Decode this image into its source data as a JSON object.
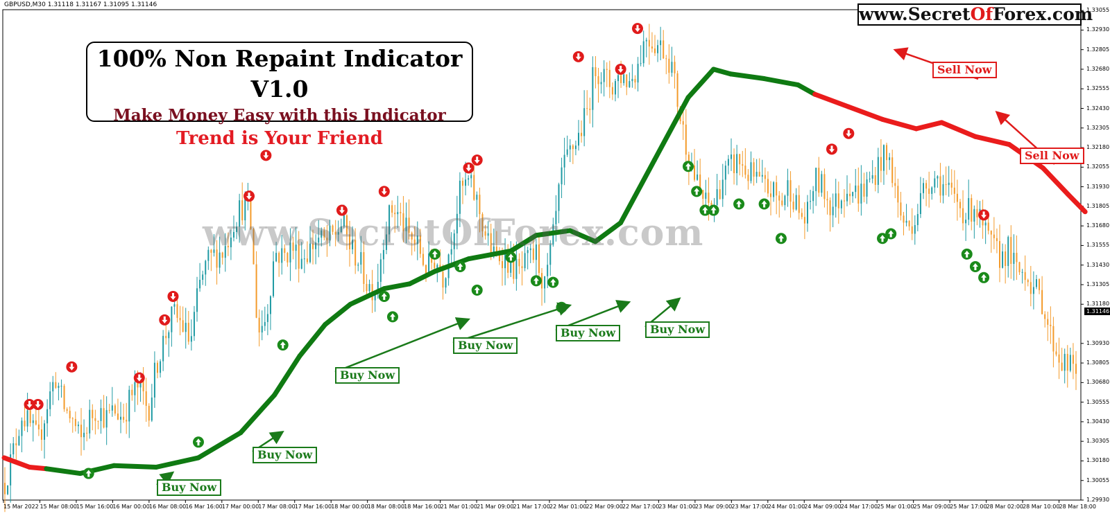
{
  "symbol_info": "GBPUSD,M30  1.31118 1.31167 1.31095 1.31146",
  "brand": {
    "prefix": "www.Secret",
    "highlight": "Of",
    "suffix": "Forex.com"
  },
  "title_box": {
    "line1": "100% Non Repaint Indicator V1.0",
    "line2": "Make Money Easy with this Indicator",
    "line3": "Trend is Your Friend"
  },
  "watermark": "www.SecretOfForex.com",
  "current_price": "1.31146",
  "signal_labels": {
    "buy": "Buy Now",
    "sell": "Sell Now"
  },
  "colors": {
    "bull_candle": "#1f9aa3",
    "bear_candle": "#f39a2a",
    "trend_up": "#0f7a12",
    "trend_down": "#ea1c1c",
    "buy_arrow": "#1a8a1a",
    "sell_arrow": "#e01b1b"
  },
  "chart_data": {
    "type": "line",
    "title": "GBPUSD,M30",
    "ylim": [
      1.2993,
      1.3306
    ],
    "y_tick_labels": [
      "1.33055",
      "1.32930",
      "1.32805",
      "1.32680",
      "1.32555",
      "1.32430",
      "1.32305",
      "1.32180",
      "1.32055",
      "1.31930",
      "1.31805",
      "1.31680",
      "1.31555",
      "1.31430",
      "1.31305",
      "1.31180",
      "1.30930",
      "1.30805",
      "1.30680",
      "1.30555",
      "1.30430",
      "1.30305",
      "1.30180",
      "1.30055",
      "1.29930"
    ],
    "x_tick_labels": [
      "15 Mar 2022",
      "15 Mar 08:00",
      "15 Mar 16:00",
      "16 Mar 00:00",
      "16 Mar 08:00",
      "16 Mar 16:00",
      "17 Mar 00:00",
      "17 Mar 08:00",
      "17 Mar 16:00",
      "18 Mar 00:00",
      "18 Mar 08:00",
      "18 Mar 16:00",
      "21 Mar 01:00",
      "21 Mar 09:00",
      "21 Mar 17:00",
      "22 Mar 01:00",
      "22 Mar 09:00",
      "22 Mar 17:00",
      "23 Mar 01:00",
      "23 Mar 09:00",
      "23 Mar 17:00",
      "24 Mar 01:00",
      "24 Mar 09:00",
      "24 Mar 17:00",
      "25 Mar 01:00",
      "25 Mar 09:00",
      "25 Mar 17:00",
      "28 Mar 02:00",
      "28 Mar 10:00",
      "28 Mar 18:00"
    ],
    "price_path": [
      [
        0,
        1.3004
      ],
      [
        2,
        1.3024
      ],
      [
        3,
        1.3048
      ],
      [
        4,
        1.304
      ],
      [
        5,
        1.303
      ],
      [
        6,
        1.3054
      ],
      [
        7,
        1.3072
      ],
      [
        8,
        1.3052
      ],
      [
        9,
        1.3044
      ],
      [
        10,
        1.303
      ],
      [
        11,
        1.3045
      ],
      [
        12,
        1.3052
      ],
      [
        13,
        1.3045
      ],
      [
        14,
        1.305
      ],
      [
        15,
        1.3046
      ],
      [
        16,
        1.306
      ],
      [
        17,
        1.3066
      ],
      [
        18,
        1.305
      ],
      [
        19,
        1.308
      ],
      [
        20,
        1.3098
      ],
      [
        21,
        1.3112
      ],
      [
        22,
        1.3105
      ],
      [
        23,
        1.3093
      ],
      [
        24,
        1.3128
      ],
      [
        25,
        1.3145
      ],
      [
        26,
        1.315
      ],
      [
        27,
        1.3152
      ],
      [
        28,
        1.317
      ],
      [
        29,
        1.318
      ],
      [
        30,
        1.318
      ],
      [
        31,
        1.31
      ],
      [
        32,
        1.311
      ],
      [
        33,
        1.3152
      ],
      [
        34,
        1.3148
      ],
      [
        35,
        1.3155
      ],
      [
        36,
        1.3148
      ],
      [
        37,
        1.3152
      ],
      [
        38,
        1.316
      ],
      [
        39,
        1.3157
      ],
      [
        40,
        1.3162
      ],
      [
        41,
        1.317
      ],
      [
        42,
        1.3154
      ],
      [
        43,
        1.3146
      ],
      [
        44,
        1.313
      ],
      [
        45,
        1.3128
      ],
      [
        46,
        1.3165
      ],
      [
        47,
        1.318
      ],
      [
        48,
        1.3172
      ],
      [
        49,
        1.316
      ],
      [
        50,
        1.3155
      ],
      [
        51,
        1.314
      ],
      [
        52,
        1.3148
      ],
      [
        53,
        1.3135
      ],
      [
        54,
        1.3162
      ],
      [
        55,
        1.319
      ],
      [
        56,
        1.3196
      ],
      [
        57,
        1.3183
      ],
      [
        58,
        1.3162
      ],
      [
        59,
        1.3148
      ],
      [
        60,
        1.315
      ],
      [
        61,
        1.3143
      ],
      [
        62,
        1.3138
      ],
      [
        63,
        1.3145
      ],
      [
        64,
        1.315
      ],
      [
        65,
        1.3128
      ],
      [
        66,
        1.316
      ],
      [
        67,
        1.32
      ],
      [
        68,
        1.3215
      ],
      [
        69,
        1.3225
      ],
      [
        70,
        1.324
      ],
      [
        71,
        1.327
      ],
      [
        72,
        1.3263
      ],
      [
        73,
        1.3257
      ],
      [
        74,
        1.3265
      ],
      [
        75,
        1.326
      ],
      [
        76,
        1.327
      ],
      [
        77,
        1.329
      ],
      [
        78,
        1.3285
      ],
      [
        79,
        1.3282
      ],
      [
        80,
        1.3272
      ],
      [
        81,
        1.324
      ],
      [
        82,
        1.3215
      ],
      [
        83,
        1.3195
      ],
      [
        84,
        1.3182
      ],
      [
        85,
        1.318
      ],
      [
        86,
        1.3198
      ],
      [
        87,
        1.3205
      ],
      [
        88,
        1.321
      ],
      [
        89,
        1.3202
      ],
      [
        90,
        1.3198
      ],
      [
        91,
        1.3192
      ],
      [
        92,
        1.319
      ],
      [
        93,
        1.3182
      ],
      [
        94,
        1.3195
      ],
      [
        95,
        1.3178
      ],
      [
        96,
        1.317
      ],
      [
        97,
        1.3198
      ],
      [
        98,
        1.3192
      ],
      [
        99,
        1.318
      ],
      [
        100,
        1.3185
      ],
      [
        101,
        1.3196
      ],
      [
        102,
        1.3188
      ],
      [
        103,
        1.3192
      ],
      [
        104,
        1.32
      ],
      [
        105,
        1.3212
      ],
      [
        106,
        1.3208
      ],
      [
        107,
        1.3178
      ],
      [
        108,
        1.3166
      ],
      [
        109,
        1.3175
      ],
      [
        110,
        1.3192
      ],
      [
        111,
        1.32
      ],
      [
        112,
        1.3196
      ],
      [
        113,
        1.3188
      ],
      [
        114,
        1.3183
      ],
      [
        115,
        1.3175
      ],
      [
        116,
        1.3182
      ],
      [
        117,
        1.3165
      ],
      [
        118,
        1.3155
      ],
      [
        119,
        1.3148
      ],
      [
        120,
        1.3153
      ],
      [
        121,
        1.3138
      ],
      [
        122,
        1.314
      ],
      [
        123,
        1.3128
      ],
      [
        124,
        1.312
      ],
      [
        125,
        1.3098
      ],
      [
        126,
        1.3084
      ],
      [
        127,
        1.3078
      ],
      [
        128,
        1.3077
      ]
    ],
    "trend_line": [
      [
        0,
        1.302,
        "down"
      ],
      [
        3,
        1.3014,
        "down"
      ],
      [
        5,
        1.3013,
        "up"
      ],
      [
        9,
        1.301,
        "up"
      ],
      [
        13,
        1.3015,
        "up"
      ],
      [
        18,
        1.3014,
        "up"
      ],
      [
        23,
        1.302,
        "up"
      ],
      [
        28,
        1.3036,
        "up"
      ],
      [
        32,
        1.306,
        "up"
      ],
      [
        35,
        1.3085,
        "up"
      ],
      [
        38,
        1.3105,
        "up"
      ],
      [
        41,
        1.3118,
        "up"
      ],
      [
        45,
        1.3128,
        "up"
      ],
      [
        48,
        1.3131,
        "up"
      ],
      [
        51,
        1.3139,
        "up"
      ],
      [
        55,
        1.3147,
        "up"
      ],
      [
        60,
        1.3152,
        "up"
      ],
      [
        63,
        1.3162,
        "up"
      ],
      [
        67,
        1.3165,
        "up"
      ],
      [
        70,
        1.3158,
        "up"
      ],
      [
        73,
        1.317,
        "up"
      ],
      [
        77,
        1.321,
        "up"
      ],
      [
        81,
        1.325,
        "up"
      ],
      [
        84,
        1.3268,
        "up"
      ],
      [
        86,
        1.3265,
        "up"
      ],
      [
        90,
        1.3262,
        "up"
      ],
      [
        94,
        1.3258,
        "up"
      ],
      [
        96,
        1.3252,
        "down"
      ],
      [
        100,
        1.3244,
        "down"
      ],
      [
        104,
        1.3236,
        "down"
      ],
      [
        108,
        1.323,
        "down"
      ],
      [
        111,
        1.3234,
        "down"
      ],
      [
        115,
        1.3225,
        "down"
      ],
      [
        119,
        1.322,
        "down"
      ],
      [
        123,
        1.3205,
        "down"
      ],
      [
        126,
        1.3188,
        "down"
      ],
      [
        128,
        1.3177,
        "down"
      ]
    ],
    "buy_signals": [
      [
        10,
        1.301
      ],
      [
        23,
        1.303
      ],
      [
        33,
        1.3092
      ],
      [
        45,
        1.3123
      ],
      [
        46,
        1.311
      ],
      [
        51,
        1.315
      ],
      [
        54,
        1.3142
      ],
      [
        56,
        1.3127
      ],
      [
        60,
        1.3148
      ],
      [
        63,
        1.3133
      ],
      [
        65,
        1.3132
      ],
      [
        66,
        1.3116
      ],
      [
        81,
        1.3206
      ],
      [
        82,
        1.319
      ],
      [
        83,
        1.3178
      ],
      [
        84,
        1.3178
      ],
      [
        87,
        1.3182
      ],
      [
        90,
        1.3182
      ],
      [
        92,
        1.316
      ],
      [
        104,
        1.316
      ],
      [
        105,
        1.3163
      ],
      [
        114,
        1.315
      ],
      [
        115,
        1.3142
      ],
      [
        116,
        1.3135
      ]
    ],
    "sell_signals": [
      [
        3,
        1.3054
      ],
      [
        4,
        1.3054
      ],
      [
        8,
        1.3078
      ],
      [
        16,
        1.3071
      ],
      [
        19,
        1.3108
      ],
      [
        20,
        1.3123
      ],
      [
        29,
        1.3187
      ],
      [
        31,
        1.3213
      ],
      [
        40,
        1.3178
      ],
      [
        45,
        1.319
      ],
      [
        55,
        1.3205
      ],
      [
        56,
        1.321
      ],
      [
        68,
        1.3276
      ],
      [
        73,
        1.3268
      ],
      [
        75,
        1.3294
      ],
      [
        98,
        1.3217
      ],
      [
        100,
        1.3227
      ],
      [
        116,
        1.3175
      ]
    ],
    "buy_callouts": [
      [
        19,
        1.301
      ],
      [
        32,
        1.3036
      ],
      [
        54,
        1.3108
      ],
      [
        66,
        1.3117
      ],
      [
        73,
        1.3119
      ],
      [
        79,
        1.3121
      ]
    ],
    "sell_callouts": [
      [
        105,
        1.328
      ],
      [
        117,
        1.324
      ]
    ]
  }
}
